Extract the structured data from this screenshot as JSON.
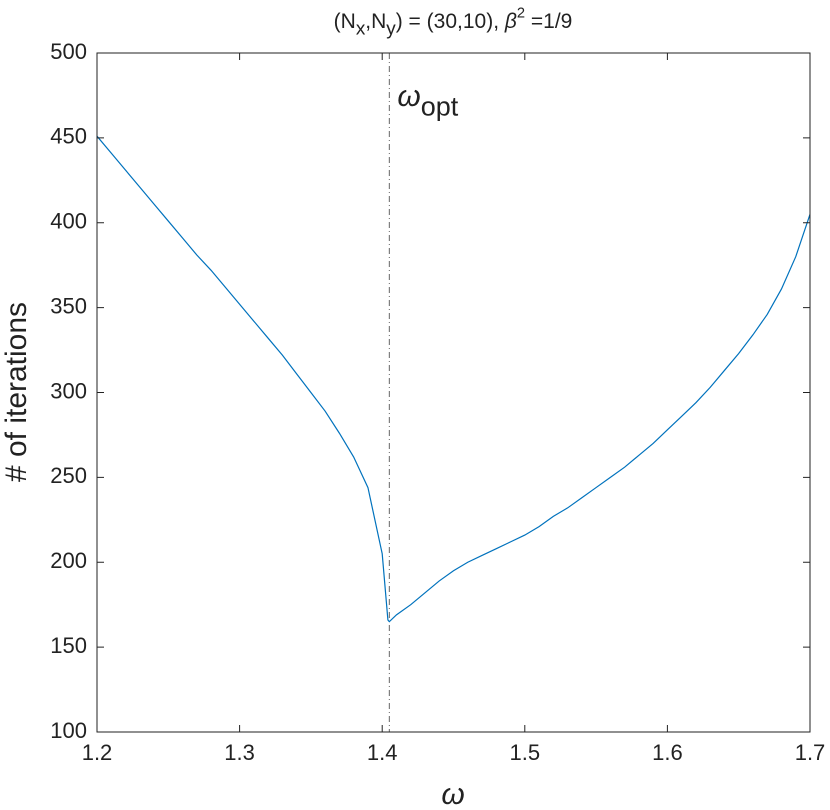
{
  "chart_data": {
    "type": "line",
    "title": "(N_x,N_y) = (30,10),  β^2 =1/9",
    "x_label": "ω",
    "y_label": "# of iterations",
    "annotation": {
      "text": "ω_opt",
      "x": 1.405
    },
    "x": [
      1.2,
      1.21,
      1.22,
      1.23,
      1.24,
      1.25,
      1.26,
      1.27,
      1.28,
      1.29,
      1.3,
      1.31,
      1.32,
      1.33,
      1.34,
      1.35,
      1.36,
      1.37,
      1.38,
      1.39,
      1.4,
      1.404,
      1.405,
      1.41,
      1.42,
      1.43,
      1.44,
      1.45,
      1.46,
      1.47,
      1.48,
      1.49,
      1.5,
      1.51,
      1.52,
      1.53,
      1.54,
      1.55,
      1.56,
      1.57,
      1.58,
      1.59,
      1.6,
      1.61,
      1.62,
      1.63,
      1.64,
      1.65,
      1.66,
      1.67,
      1.68,
      1.69,
      1.7
    ],
    "series": [
      {
        "name": "iterations",
        "color": "#0072bd",
        "values": [
          451,
          441,
          431,
          421,
          411,
          401,
          391,
          381,
          372,
          362,
          352,
          342,
          332,
          322,
          311,
          300,
          289,
          276,
          262,
          244,
          205,
          166,
          165,
          169,
          175,
          182,
          189,
          195,
          200,
          204,
          208,
          212,
          216,
          221,
          227,
          232,
          238,
          244,
          250,
          256,
          263,
          270,
          278,
          286,
          294,
          303,
          313,
          323,
          334,
          346,
          361,
          380,
          405
        ]
      }
    ],
    "xlim": [
      1.2,
      1.7
    ],
    "xticks": [
      1.2,
      1.3,
      1.4,
      1.5,
      1.6,
      1.7
    ],
    "ylim": [
      100,
      500
    ],
    "yticks": [
      100,
      150,
      200,
      250,
      300,
      350,
      400,
      450,
      500
    ],
    "grid": false
  }
}
